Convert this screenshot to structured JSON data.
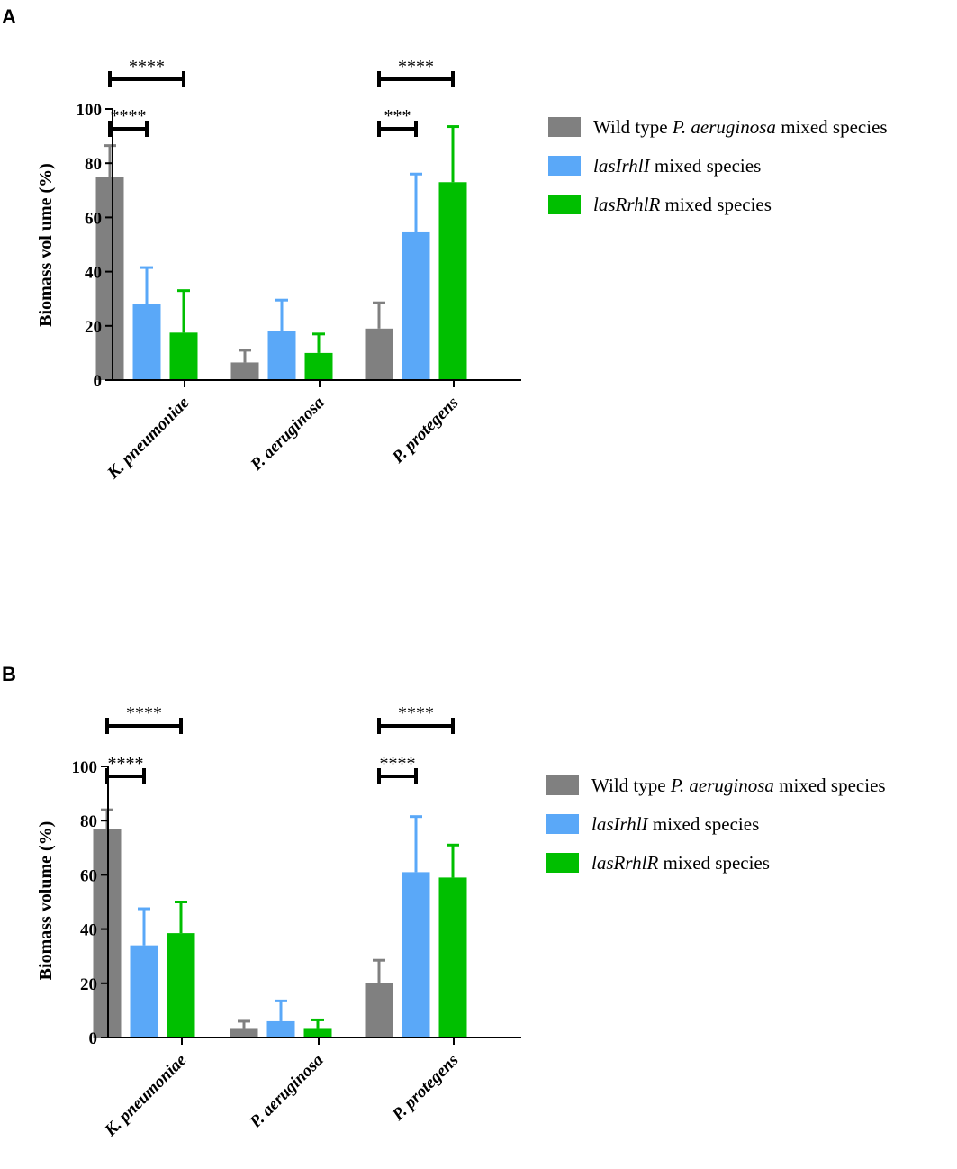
{
  "panels": [
    {
      "label": "A"
    },
    {
      "label": "B"
    }
  ],
  "chart_data": [
    {
      "type": "bar",
      "panel": "A",
      "categories": [
        "K. pneumoniae",
        "P. aeruginosa",
        "P. protegens"
      ],
      "series": [
        {
          "name": "Wild type P. aeruginosa mixed species",
          "color": "#808080",
          "values": [
            75,
            6.5,
            19
          ],
          "errors": [
            11.5,
            4.5,
            9.5
          ]
        },
        {
          "name": "lasIrhlI mixed species",
          "color": "#5aa8f8",
          "values": [
            28,
            18,
            54.5
          ],
          "errors": [
            13.5,
            11.5,
            21.5
          ]
        },
        {
          "name": "lasRrhlR mixed species",
          "color": "#00bf00",
          "values": [
            17.5,
            10,
            73
          ],
          "errors": [
            15.5,
            7,
            20.5
          ]
        }
      ],
      "legend": [
        {
          "prefix": "Wild type ",
          "italic": "P. aeruginosa",
          "suffix": " mixed species"
        },
        {
          "prefix": "",
          "italic": "lasIrhlI",
          "suffix": " mixed species"
        },
        {
          "prefix": "",
          "italic": "lasRrhlR",
          "suffix": " mixed species"
        }
      ],
      "ylabel": "Biomass vol ume  (%)",
      "ylim": [
        0,
        100
      ],
      "yticks": [
        "0",
        "20",
        "40",
        "60",
        "80",
        "100"
      ],
      "significance": [
        {
          "category": 0,
          "from": 0,
          "to": 1,
          "level": 1,
          "label": "****"
        },
        {
          "category": 0,
          "from": 0,
          "to": 2,
          "level": 2,
          "label": "****"
        },
        {
          "category": 2,
          "from": 0,
          "to": 1,
          "level": 1,
          "label": "***"
        },
        {
          "category": 2,
          "from": 0,
          "to": 2,
          "level": 2,
          "label": "****"
        }
      ]
    },
    {
      "type": "bar",
      "panel": "B",
      "categories": [
        "K. pneumoniae",
        "P. aeruginosa",
        "P. protegens"
      ],
      "series": [
        {
          "name": "Wild type P. aeruginosa mixed species",
          "color": "#808080",
          "values": [
            77,
            3.5,
            20
          ],
          "errors": [
            7,
            2.5,
            8.5
          ]
        },
        {
          "name": "lasIrhlI mixed species",
          "color": "#5aa8f8",
          "values": [
            34,
            6,
            61
          ],
          "errors": [
            13.5,
            7.5,
            20.5
          ]
        },
        {
          "name": "lasRrhlR mixed species",
          "color": "#00bf00",
          "values": [
            38.5,
            3.5,
            59
          ],
          "errors": [
            11.5,
            3,
            12
          ]
        }
      ],
      "legend": [
        {
          "prefix": "Wild type ",
          "italic": "P. aeruginosa",
          "suffix": " mixed species"
        },
        {
          "prefix": "",
          "italic": "lasIrhlI",
          "suffix": " mixed species"
        },
        {
          "prefix": "",
          "italic": "lasRrhlR",
          "suffix": " mixed species"
        }
      ],
      "ylabel": "Biomass volume (%)",
      "ylim": [
        0,
        100
      ],
      "yticks": [
        "0",
        "20",
        "40",
        "60",
        "80",
        "100"
      ],
      "significance": [
        {
          "category": 0,
          "from": 0,
          "to": 1,
          "level": 1,
          "label": "****"
        },
        {
          "category": 0,
          "from": 0,
          "to": 2,
          "level": 2,
          "label": "****"
        },
        {
          "category": 2,
          "from": 0,
          "to": 1,
          "level": 1,
          "label": "****"
        },
        {
          "category": 2,
          "from": 0,
          "to": 2,
          "level": 2,
          "label": "****"
        }
      ]
    }
  ]
}
